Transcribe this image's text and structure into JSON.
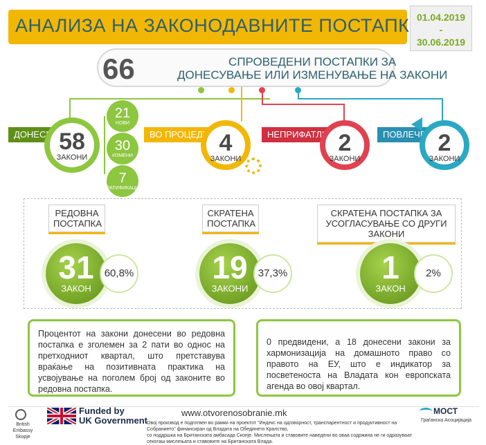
{
  "header": {
    "title": "АНАЛИЗА НА ЗАКОНОДАВНИТЕ ПОСТАПКИ",
    "date_from": "01.04.2019",
    "date_sep": "-",
    "date_to": "30.06.2019"
  },
  "summary": {
    "number": "66",
    "line1": "СПРОВЕДЕНИ ПОСТАПКИ ЗА",
    "line2": "ДОНЕСУВАЊЕ ИЛИ ИЗМЕНУВАЊЕ НА ЗАКОНИ"
  },
  "categories": [
    {
      "label": "ДОНЕСЕНИ",
      "number": "58",
      "word": "ЗАКОНИ",
      "color": "#8dc63f"
    },
    {
      "label": "ВО ПРОЦЕДУРА",
      "number": "4",
      "word": "ЗАКОНИ",
      "color": "#f2b705"
    },
    {
      "label": "НЕПРИФАТЛИВИ",
      "number": "2",
      "word": "ЗАКОНИ",
      "color": "#e0424f"
    },
    {
      "label": "ПОВЛЕЧЕНИ",
      "number": "2",
      "word": "ЗАКОНИ",
      "color": "#2aa8c4"
    }
  ],
  "adopted_breakdown": [
    {
      "number": "21",
      "word": "НОВИ"
    },
    {
      "number": "30",
      "word": "ИЗМЕНИ"
    },
    {
      "number": "7",
      "word": "РАТИФИКАЦИИ"
    }
  ],
  "procedures": [
    {
      "title_line1": "РЕДОВНА",
      "title_line2": "ПОСТАПКА",
      "number": "31",
      "word": "ЗАКОН",
      "percent": "60,8%"
    },
    {
      "title_line1": "СКРАТЕНА",
      "title_line2": "ПОСТАПКА",
      "number": "19",
      "word": "ЗАКОНИ",
      "percent": "37,3%"
    },
    {
      "title_line1": "СКРАТЕНА ПОСТАПКА ЗА",
      "title_line2": "УСОГЛАСУВАЊЕ СО ДРУГИ ЗАКОНИ",
      "number": "1",
      "word": "ЗАКОН",
      "percent": "2%"
    }
  ],
  "notes": {
    "left": "Процентот на закони донесени во редовна постапка е зголемен за 2 пати во однос на претходниот квартал, што претставува враќање на позитивната практика на усвојување на поголем број од законите во редовна постапка.",
    "right": "0 предвидени, а 18 донесени закони за хармонизација на домашното право со правото на ЕУ, што е индикатор за посветеноста на Владата кон европската агенда во овој квартал."
  },
  "footer": {
    "embassy_line1": "British Embassy",
    "embassy_line2": "Skopje",
    "funded_line1": "Funded by",
    "funded_line2": "UK Government",
    "website": "www.otvorenosobranie.mk",
    "disclaimer_line1": "Овој производ е подготвен во рамки на проектот \"Индекс на одговорност, транспарентност и продуктивност на Собранието\" финансиран од Владата на Обединето Кралство,",
    "disclaimer_line2": "со поддршка на Британската амбасада Скопје.  Мислењата и ставовите наведени во оваа содржина не ги одразуваат секогаш мислењата и ставовите на Британската Влада.",
    "most_name": "МОСТ",
    "most_sub": "Граѓанска Асоцијација"
  }
}
